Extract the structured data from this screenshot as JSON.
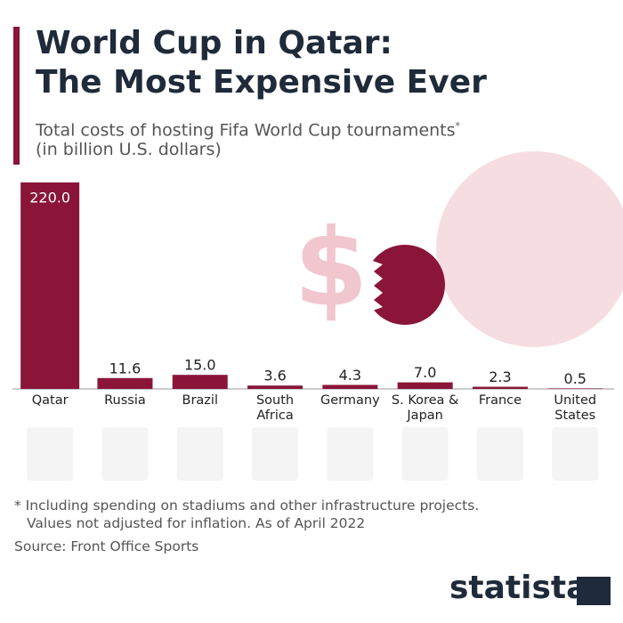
{
  "chart_data": {
    "type": "bar",
    "title": "World Cup in Qatar:",
    "title_line2": "The Most Expensive Ever",
    "subtitle": "Total costs of hosting Fifa World Cup tournaments",
    "subtitle_marker": "*",
    "subtitle_line2": "(in billion U.S. dollars)",
    "categories": [
      "Qatar",
      "Russia",
      "Brazil",
      "South Africa",
      "Germany",
      "S. Korea & Japan",
      "France",
      "United States"
    ],
    "values": [
      220.0,
      11.6,
      15.0,
      3.6,
      4.3,
      7.0,
      2.3,
      0.5
    ],
    "value_labels": [
      "220.0",
      "11.6",
      "15.0",
      "3.6",
      "4.3",
      "7.0",
      "2.3",
      "0.5"
    ],
    "color": "#8a1538",
    "decoration": "$",
    "footnote": "* Including spending on stadiums and other infrastructure projects.",
    "footnote_line2": "Values not adjusted for inflation. As of April 2022",
    "source": "Source: Front Office Sports",
    "brand": "statista"
  }
}
